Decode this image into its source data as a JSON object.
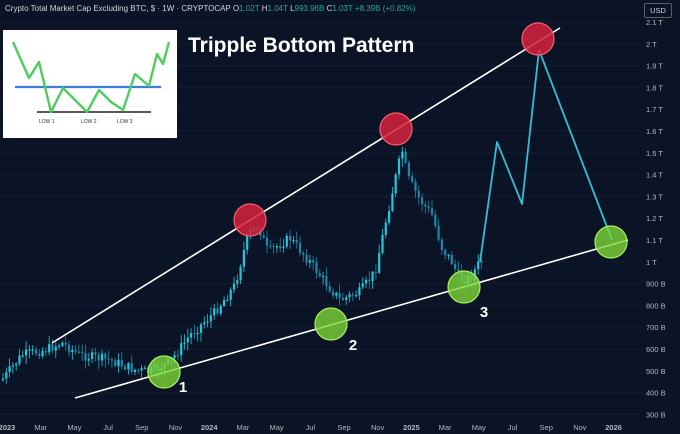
{
  "header": {
    "symbol": "Crypto Total Market Cap Excluding BTC, $ · 1W · CRYPTOCAP",
    "o_label": "O",
    "o_value": "1.02T",
    "h_label": "H",
    "h_value": "1.04T",
    "l_label": "L",
    "l_value": "993.96B",
    "c_label": "C",
    "c_value": "1.03T",
    "change": "+8.39B (+0.82%)",
    "currency": "USD"
  },
  "title": "Tripple Bottom Pattern",
  "inset": {
    "labels": [
      "LOW 1",
      "LOW 2",
      "LOW 3"
    ]
  },
  "chart_data": {
    "type": "candlestick",
    "y_ticks": [
      "2.1 T",
      "2 T",
      "1.9 T",
      "1.8 T",
      "1.7 T",
      "1.6 T",
      "1.5 T",
      "1.4 T",
      "1.3 T",
      "1.2 T",
      "1.1 T",
      "1 T",
      "900 B",
      "800 B",
      "700 B",
      "600 B",
      "500 B",
      "400 B",
      "300 B"
    ],
    "x_ticks": [
      "2023",
      "Mar",
      "May",
      "Jul",
      "Sep",
      "Nov",
      "2024",
      "Mar",
      "May",
      "Jul",
      "Sep",
      "Nov",
      "2025",
      "Mar",
      "May",
      "Jul",
      "Sep",
      "Nov",
      "2026"
    ],
    "bottom_labels": [
      "1",
      "2",
      "3"
    ],
    "colors": {
      "up": "#26c6da",
      "down": "#1e88a8",
      "projection": "#36bcd6",
      "top_marker": "#d6223c",
      "bottom_marker": "#7cd63a"
    }
  }
}
